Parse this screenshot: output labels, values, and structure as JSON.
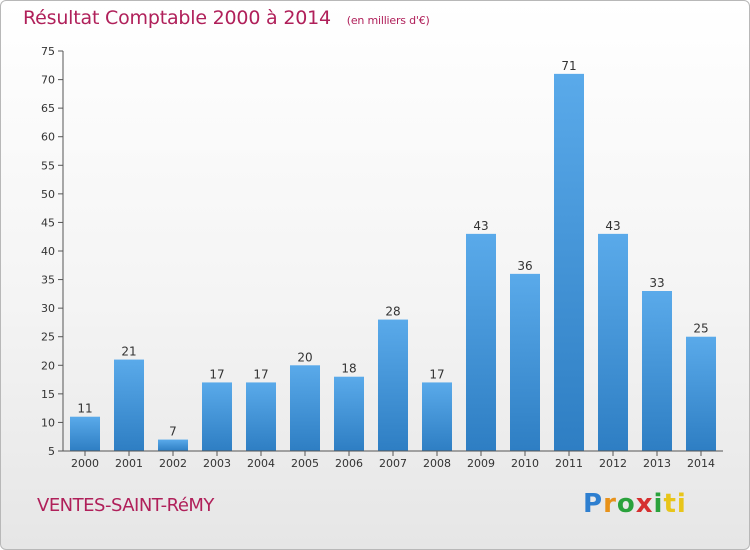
{
  "header": {
    "title": "Résultat Comptable 2000 à 2014",
    "subtitle": "(en milliers d'€)"
  },
  "footer": {
    "place": "VENTES-SAINT-RéMY",
    "logo_letters": [
      "P",
      "r",
      "o",
      "x",
      "i",
      "ti"
    ]
  },
  "colors": {
    "title": "#b0205a",
    "bar_top": "#5aaaea",
    "bar_bottom": "#2e7ec3"
  },
  "chart_data": {
    "type": "bar",
    "title": "Résultat Comptable 2000 à 2014",
    "subtitle": "(en milliers d'€)",
    "categories": [
      "2000",
      "2001",
      "2002",
      "2003",
      "2004",
      "2005",
      "2006",
      "2007",
      "2008",
      "2009",
      "2010",
      "2011",
      "2012",
      "2013",
      "2014"
    ],
    "values": [
      11,
      21,
      7,
      17,
      17,
      20,
      18,
      28,
      17,
      43,
      36,
      71,
      43,
      33,
      25
    ],
    "ylim": [
      5,
      75
    ],
    "yticks": [
      5,
      10,
      15,
      20,
      25,
      30,
      35,
      40,
      45,
      50,
      55,
      60,
      65,
      70,
      75
    ],
    "grid": false,
    "data_labels": true
  }
}
